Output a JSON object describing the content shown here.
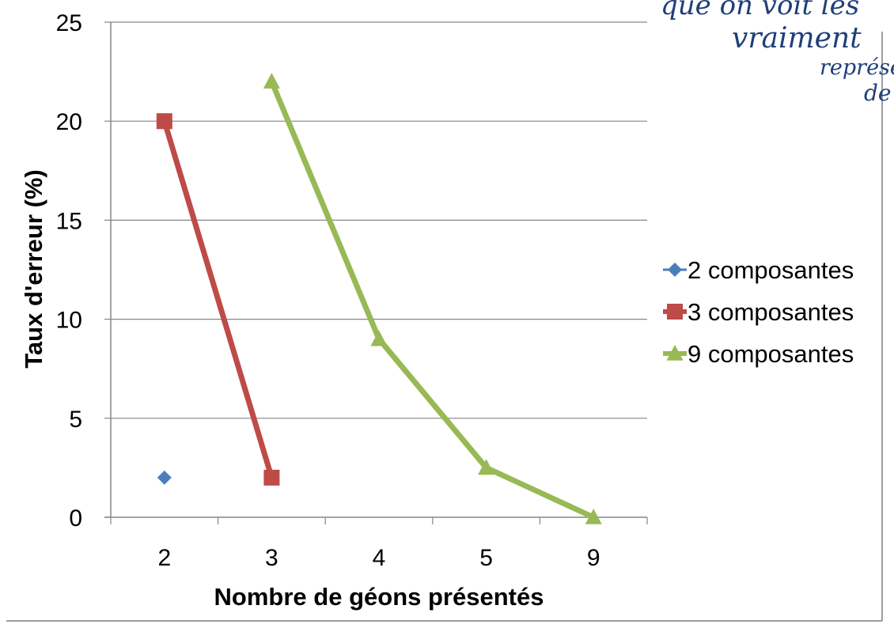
{
  "chart_data": {
    "type": "line",
    "categories": [
      "2",
      "3",
      "4",
      "5",
      "9"
    ],
    "xlabel": "Nombre de géons présentés",
    "ylabel": "Taux d'erreur (%)",
    "ylim": [
      0,
      25
    ],
    "yticks": [
      0,
      5,
      10,
      15,
      20,
      25
    ],
    "grid": true,
    "legend": "right",
    "series": [
      {
        "name": "2 composantes",
        "color": "#4a7ebb",
        "marker": "diamond",
        "values": [
          2,
          null,
          null,
          null,
          null
        ]
      },
      {
        "name": "3 composantes",
        "color": "#be4b48",
        "marker": "square",
        "values": [
          20,
          2,
          null,
          null,
          null
        ]
      },
      {
        "name": "9 composantes",
        "color": "#98b954",
        "marker": "triangle",
        "values": [
          null,
          22,
          9,
          2.5,
          0
        ]
      }
    ]
  },
  "annotation": {
    "lines": [
      "que on voit les",
      "vraiment",
      "représe",
      "de"
    ],
    "color": "#1f3f7a"
  }
}
